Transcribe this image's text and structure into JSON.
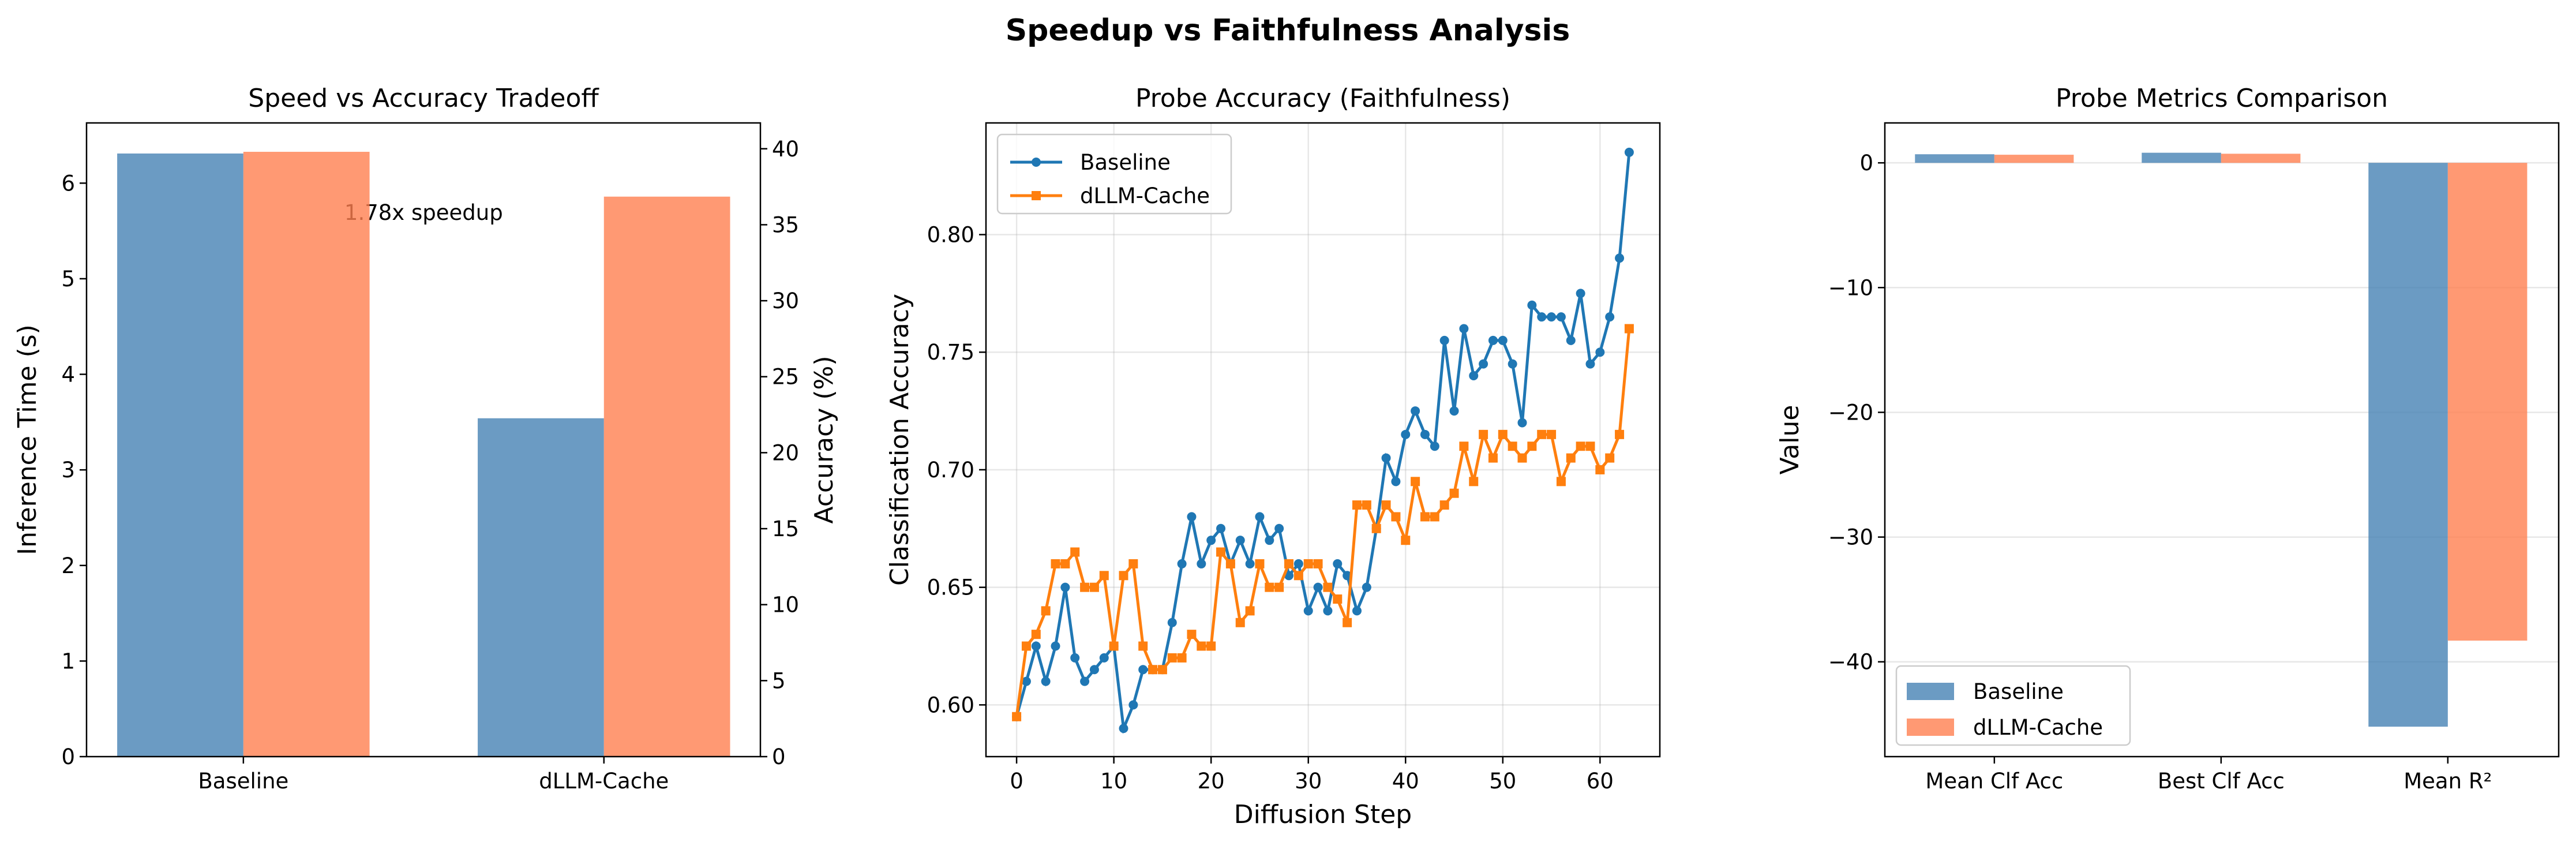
{
  "title": "Speedup vs Faithfulness Analysis",
  "colors": {
    "steelblue": "#4682B4",
    "coral": "#FF7F50",
    "line_blue": "#1f77b4",
    "line_orange": "#ff7f0e"
  },
  "chart_data": [
    {
      "type": "bar",
      "title": "Speed vs Accuracy Tradeoff",
      "categories": [
        "Baseline",
        "dLLM-Cache"
      ],
      "series": [
        {
          "axis": "left",
          "values": [
            6.31,
            3.54
          ],
          "color": "#4682B4"
        },
        {
          "axis": "right",
          "values": [
            39.8,
            36.85
          ],
          "color": "#FF7F50"
        }
      ],
      "ylabel": "Inference Time (s)",
      "ylabel_right": "Accuracy (%)",
      "ylim": [
        0,
        6.63
      ],
      "ylim_right": [
        0,
        41.7
      ],
      "xlim": [
        -0.435,
        1.434
      ],
      "yticks": [
        0,
        1,
        2,
        3,
        4,
        5,
        6
      ],
      "ytick_labels": [
        "0",
        "1",
        "2",
        "3",
        "4",
        "5",
        "6"
      ],
      "yticks_right": [
        0,
        5,
        10,
        15,
        20,
        25,
        30,
        35,
        40
      ],
      "ytick_labels_right": [
        "0",
        "5",
        "10",
        "15",
        "20",
        "25",
        "30",
        "35",
        "40"
      ],
      "annotation": {
        "text": "1.78x speedup",
        "x": 0.5,
        "y": 5.7
      },
      "grid": false
    },
    {
      "type": "line",
      "title": "Probe Accuracy (Faithfulness)",
      "xlabel": "Diffusion Step",
      "ylabel": "Classification Accuracy",
      "x": [
        0,
        1,
        2,
        3,
        4,
        5,
        6,
        7,
        8,
        9,
        10,
        11,
        12,
        13,
        14,
        15,
        16,
        17,
        18,
        19,
        20,
        21,
        22,
        23,
        24,
        25,
        26,
        27,
        28,
        29,
        30,
        31,
        32,
        33,
        34,
        35,
        36,
        37,
        38,
        39,
        40,
        41,
        42,
        43,
        44,
        45,
        46,
        47,
        48,
        49,
        50,
        51,
        52,
        53,
        54,
        55,
        56,
        57,
        58,
        59,
        60,
        61,
        62,
        63
      ],
      "series": [
        {
          "name": "Baseline",
          "marker": "circle",
          "color": "#1f77b4",
          "values": [
            0.595,
            0.61,
            0.625,
            0.61,
            0.625,
            0.65,
            0.62,
            0.61,
            0.615,
            0.62,
            0.625,
            0.59,
            0.6,
            0.615,
            0.615,
            0.615,
            0.635,
            0.66,
            0.68,
            0.66,
            0.67,
            0.675,
            0.66,
            0.67,
            0.66,
            0.68,
            0.67,
            0.675,
            0.655,
            0.66,
            0.64,
            0.65,
            0.64,
            0.66,
            0.655,
            0.64,
            0.65,
            0.675,
            0.705,
            0.695,
            0.715,
            0.725,
            0.715,
            0.71,
            0.755,
            0.725,
            0.76,
            0.74,
            0.745,
            0.755,
            0.755,
            0.745,
            0.72,
            0.77,
            0.765,
            0.765,
            0.765,
            0.755,
            0.775,
            0.745,
            0.75,
            0.765,
            0.79,
            0.835
          ]
        },
        {
          "name": "dLLM-Cache",
          "marker": "square",
          "color": "#ff7f0e",
          "values": [
            0.595,
            0.625,
            0.63,
            0.64,
            0.66,
            0.66,
            0.665,
            0.65,
            0.65,
            0.655,
            0.625,
            0.655,
            0.66,
            0.625,
            0.615,
            0.615,
            0.62,
            0.62,
            0.63,
            0.625,
            0.625,
            0.665,
            0.66,
            0.635,
            0.64,
            0.66,
            0.65,
            0.65,
            0.66,
            0.655,
            0.66,
            0.66,
            0.65,
            0.645,
            0.635,
            0.685,
            0.685,
            0.675,
            0.685,
            0.68,
            0.67,
            0.695,
            0.68,
            0.68,
            0.685,
            0.69,
            0.71,
            0.695,
            0.715,
            0.705,
            0.715,
            0.71,
            0.705,
            0.71,
            0.715,
            0.715,
            0.695,
            0.705,
            0.71,
            0.71,
            0.7,
            0.705,
            0.715,
            0.76
          ]
        }
      ],
      "xlim": [
        -3.15,
        66.15
      ],
      "ylim": [
        0.578,
        0.8475
      ],
      "xticks": [
        0,
        10,
        20,
        30,
        40,
        50,
        60
      ],
      "xtick_labels": [
        "0",
        "10",
        "20",
        "30",
        "40",
        "50",
        "60"
      ],
      "yticks": [
        0.6,
        0.65,
        0.7,
        0.75,
        0.8
      ],
      "ytick_labels": [
        "0.60",
        "0.65",
        "0.70",
        "0.75",
        "0.80"
      ],
      "legend": "upper-left",
      "grid": true
    },
    {
      "type": "bar",
      "title": "Probe Metrics Comparison",
      "categories": [
        "Mean Clf Acc",
        "Best Clf Acc",
        "Mean R²"
      ],
      "series": [
        {
          "name": "Baseline",
          "values": [
            0.69,
            0.81,
            -45.2
          ],
          "color": "#4682B4"
        },
        {
          "name": "dLLM-Cache",
          "values": [
            0.65,
            0.73,
            -38.3
          ],
          "color": "#FF7F50"
        }
      ],
      "ylabel": "Value",
      "ylim": [
        -47.6,
        3.2
      ],
      "xlim": [
        -0.483,
        2.489
      ],
      "yticks": [
        0,
        -10,
        -20,
        -30,
        -40
      ],
      "ytick_labels": [
        "0",
        "−10",
        "−20",
        "−30",
        "−40"
      ],
      "legend": "lower-left",
      "grid": "y"
    }
  ]
}
